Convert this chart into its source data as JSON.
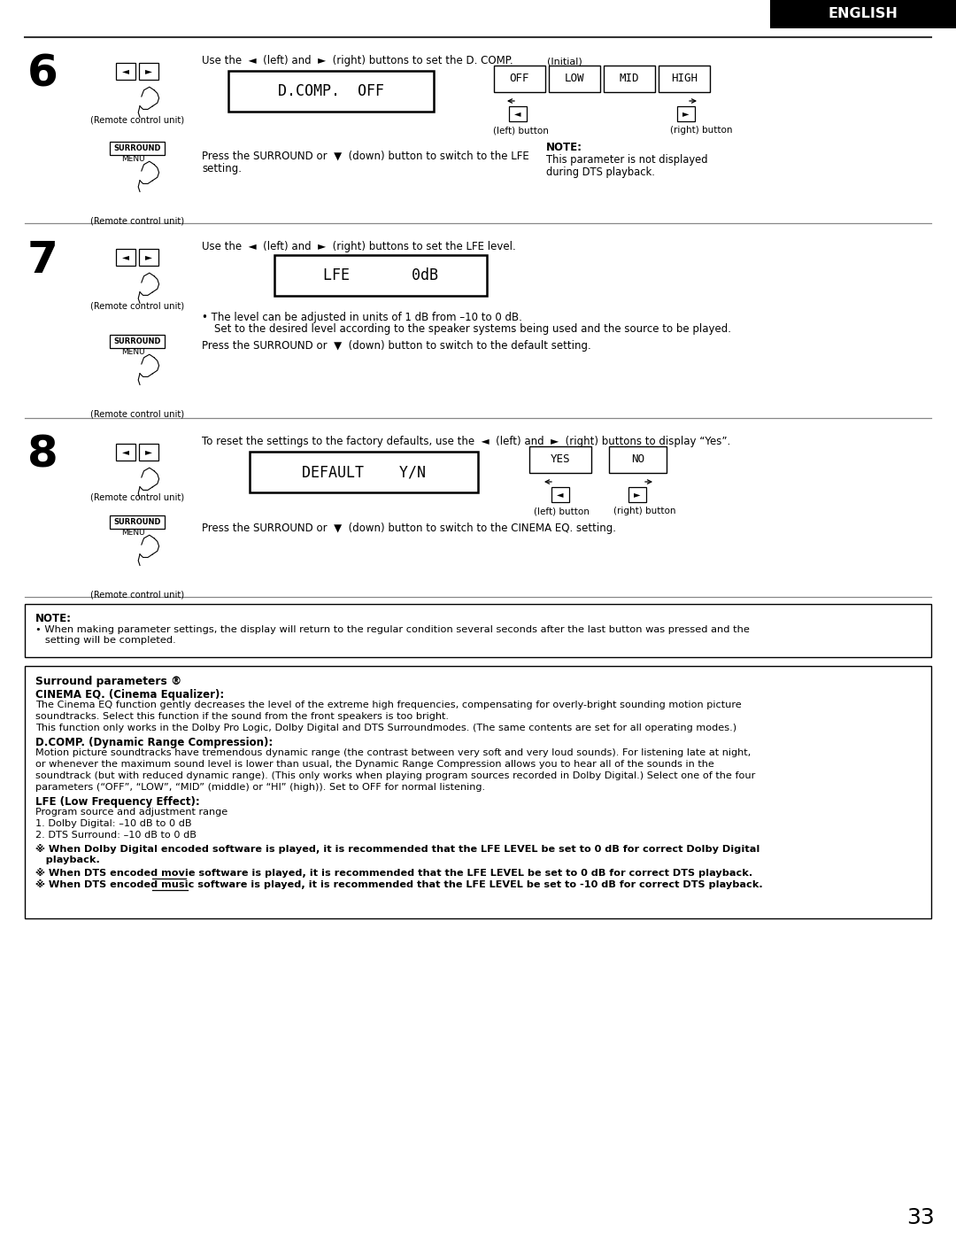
{
  "page_number": "33",
  "header_text": "ENGLISH",
  "background_color": "#ffffff",
  "header_bg": "#000000",
  "header_text_color": "#ffffff",
  "section6": {
    "number": "6",
    "instruction": "Use the  ◄  (left) and  ►  (right) buttons to set the D. COMP.",
    "display_text": "D.COMP.  OFF",
    "initial_label": "(Initial)",
    "options": [
      "OFF",
      "LOW",
      "MID",
      "HIGH"
    ],
    "left_label": "(left) button",
    "right_label": "(right) button",
    "press_text1": "Press the SURROUND or  ▼  (down) button to switch to the LFE",
    "press_text2": "setting.",
    "note_title": "NOTE:",
    "note_text1": "This parameter is not displayed",
    "note_text2": "during DTS playback.",
    "remote_label": "(Remote control unit)"
  },
  "section7": {
    "number": "7",
    "instruction": "Use the  ◄  (left) and  ►  (right) buttons to set the LFE level.",
    "display_text": "LFE       0dB",
    "bullet1": "• The level can be adjusted in units of 1 dB from –10 to 0 dB.",
    "bullet1b": "   Set to the desired level according to the speaker systems being used and the source to be played.",
    "press_text": "Press the SURROUND or  ▼  (down) button to switch to the default setting.",
    "remote_label": "(Remote control unit)"
  },
  "section8": {
    "number": "8",
    "instruction": "To reset the settings to the factory defaults, use the  ◄  (left) and  ►  (right) buttons to display “Yes”.",
    "display_text": "DEFAULT    Y/N",
    "options2": [
      "YES",
      "NO"
    ],
    "left_label": "(left) button",
    "right_label": "(right) button",
    "press_text": "Press the SURROUND or  ▼  (down) button to switch to the CINEMA EQ. setting.",
    "remote_label": "(Remote control unit)"
  },
  "note_box_title": "NOTE:",
  "note_box_text": "• When making parameter settings, the display will return to the regular condition several seconds after the last button was pressed and the",
  "note_box_text2": "   setting will be completed.",
  "surround_title": "Surround parameters ®",
  "cinema_eq_title": "CINEMA EQ. (Cinema Equalizer):",
  "cinema_eq_text1": "The Cinema EQ function gently decreases the level of the extreme high frequencies, compensating for overly-bright sounding motion picture",
  "cinema_eq_text2": "soundtracks. Select this function if the sound from the front speakers is too bright.",
  "cinema_eq_text3": "This function only works in the Dolby Pro Logic, Dolby Digital and DTS Surroundmodes. (The same contents are set for all operating modes.)",
  "dcomp_title": "D.COMP. (Dynamic Range Compression):",
  "dcomp_text1": "Motion picture soundtracks have tremendous dynamic range (the contrast between very soft and very loud sounds). For listening late at night,",
  "dcomp_text2": "or whenever the maximum sound level is lower than usual, the Dynamic Range Compression allows you to hear all of the sounds in the",
  "dcomp_text3": "soundtrack (but with reduced dynamic range). (This only works when playing program sources recorded in Dolby Digital.) Select one of the four",
  "dcomp_text4": "parameters (“OFF”, “LOW”, “MID” (middle) or “HI” (high)). Set to OFF for normal listening.",
  "lfe_title": "LFE (Low Frequency Effect):",
  "lfe_text1": "Program source and adjustment range",
  "lfe_text2": "1. Dolby Digital: –10 dB to 0 dB",
  "lfe_text3": "2. DTS Surround: –10 dB to 0 dB",
  "bold1a": "※ When Dolby Digital encoded software is played, it is recommended that the LFE LEVEL be set to 0 dB for correct Dolby Digital",
  "bold1b": "   playback.",
  "bold2": "※ When DTS encoded movie software is played, it is recommended that the LFE LEVEL be set to 0 dB for correct DTS playback.",
  "bold3": "※ When DTS encoded music software is played, it is recommended that the LFE LEVEL be set to -10 dB for correct DTS playback."
}
